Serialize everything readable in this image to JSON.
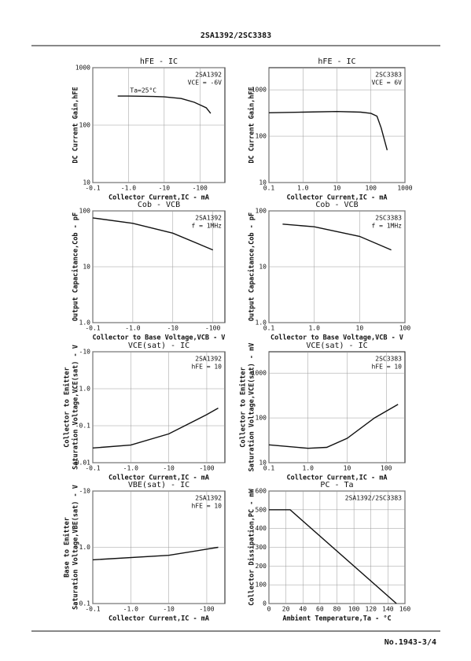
{
  "header": "2SA1392/2SC3383",
  "footer": "No.1943-3/4",
  "chart_data": [
    {
      "type": "line",
      "title": "hFE - IC",
      "annotations": [
        "2SA1392",
        "VCE = -6V"
      ],
      "x_label": "Collector Current,IC - mA",
      "y_label": [
        "DC Current Gain,hFE"
      ],
      "xscale": "log",
      "yscale": "log",
      "xlim": [
        -0.1,
        -500
      ],
      "ylim": [
        10,
        1000
      ],
      "xticks": [
        -0.1,
        {
          "value": -1,
          "label": "-1.0"
        },
        -10,
        -100
      ],
      "yticks": [
        10,
        100,
        1000
      ],
      "x": [
        -0.5,
        -1,
        -5,
        -10,
        -30,
        -70,
        -150,
        -200
      ],
      "series": [
        {
          "name": "Ta=25°C",
          "color": "#111",
          "values": [
            320,
            320,
            315,
            310,
            290,
            250,
            200,
            160
          ]
        }
      ]
    },
    {
      "type": "line",
      "title": "hFE - IC",
      "annotations": [
        "2SC3383",
        "VCE = 6V"
      ],
      "x_label": "Collector Current,IC - mA",
      "y_label": [
        "DC Current Gain,hFE"
      ],
      "xscale": "log",
      "yscale": "log",
      "xlim": [
        0.1,
        1000
      ],
      "ylim": [
        10,
        3000
      ],
      "xticks": [
        0.1,
        {
          "value": 1,
          "label": "1.0"
        },
        10,
        100,
        1000
      ],
      "yticks": [
        10,
        100,
        1000
      ],
      "x": [
        0.1,
        1,
        10,
        50,
        100,
        150,
        200,
        300
      ],
      "series": [
        {
          "color": "#111",
          "values": [
            320,
            330,
            340,
            330,
            310,
            270,
            150,
            50
          ]
        }
      ]
    },
    {
      "type": "line",
      "title": "Cob - VCB",
      "annotations": [
        "2SA1392",
        "f = 1MHz"
      ],
      "x_label": "Collector to Base Voltage,VCB - V",
      "y_label": [
        "Output Capacitance,Cob - pF"
      ],
      "xscale": "log",
      "yscale": "log",
      "xlim": [
        -0.1,
        -200
      ],
      "ylim": [
        1,
        100
      ],
      "xticks": [
        -0.1,
        {
          "value": -1,
          "label": "-1.0"
        },
        -10,
        -100
      ],
      "yticks": [
        {
          "value": 1,
          "label": "1.0"
        },
        10,
        100
      ],
      "x": [
        -0.1,
        -1,
        -10,
        -100
      ],
      "series": [
        {
          "color": "#111",
          "values": [
            75,
            60,
            40,
            20
          ]
        }
      ]
    },
    {
      "type": "line",
      "title": "Cob - VCB",
      "annotations": [
        "2SC3383",
        "f = 1MHz"
      ],
      "x_label": "Collector to Base Voltage,VCB - V",
      "y_label": [
        "Output Capacitance,Cob - pF"
      ],
      "xscale": "log",
      "yscale": "log",
      "xlim": [
        0.1,
        100
      ],
      "ylim": [
        1,
        100
      ],
      "xticks": [
        0.1,
        {
          "value": 1,
          "label": "1.0"
        },
        10,
        100
      ],
      "yticks": [
        {
          "value": 1,
          "label": "1.0"
        },
        10,
        100
      ],
      "x": [
        0.2,
        1,
        10,
        50
      ],
      "series": [
        {
          "color": "#111",
          "values": [
            58,
            52,
            35,
            20
          ]
        }
      ]
    },
    {
      "type": "line",
      "title": "VCE(sat) - IC",
      "annotations": [
        "2SA1392",
        "hFE = 10"
      ],
      "x_label": "Collector Current,IC - mA",
      "y_label": [
        "Collector to Emitter",
        "Saturation Voltage,VCE(sat) - V"
      ],
      "xscale": "log",
      "yscale": "log",
      "xlim": [
        -0.1,
        -300
      ],
      "ylim": [
        -0.01,
        -10
      ],
      "xticks": [
        -0.1,
        {
          "value": -1,
          "label": "-1.0"
        },
        -10,
        -100
      ],
      "yticks": [
        -0.01,
        -0.1,
        {
          "value": -1,
          "label": "-1.0"
        },
        -10
      ],
      "x": [
        -0.1,
        -1,
        -10,
        -100,
        -200
      ],
      "series": [
        {
          "color": "#111",
          "values": [
            -0.025,
            -0.03,
            -0.06,
            -0.2,
            -0.3
          ]
        }
      ]
    },
    {
      "type": "line",
      "title": "VCE(sat) - IC",
      "annotations": [
        "2SC3383",
        "hFE = 10"
      ],
      "x_label": "Collector Current,IC - mA",
      "y_label": [
        "Collector to Emitter",
        "Saturation Voltage,VCE(sat) - mV"
      ],
      "xscale": "log",
      "yscale": "log",
      "xlim": [
        0.1,
        300
      ],
      "ylim": [
        10,
        3000
      ],
      "xticks": [
        0.1,
        {
          "value": 1,
          "label": "1.0"
        },
        10,
        100
      ],
      "yticks": [
        10,
        100,
        1000
      ],
      "x": [
        0.1,
        1,
        3,
        10,
        50,
        200
      ],
      "series": [
        {
          "color": "#111",
          "values": [
            25,
            21,
            22,
            35,
            100,
            200
          ]
        }
      ]
    },
    {
      "type": "line",
      "title": "VBE(sat) - IC",
      "annotations": [
        "2SA1392",
        "hFE = 10"
      ],
      "x_label": "Collector Current,IC - mA",
      "y_label": [
        "Base to Emitter",
        "Saturation Voltage,VBE(sat) - V"
      ],
      "xscale": "log",
      "yscale": "log",
      "xlim": [
        -0.1,
        -300
      ],
      "ylim": [
        -0.1,
        -10
      ],
      "xticks": [
        -0.1,
        {
          "value": -1,
          "label": "-1.0"
        },
        -10,
        -100
      ],
      "yticks": [
        -0.1,
        {
          "value": -1,
          "label": "-1.0"
        },
        -10
      ],
      "x": [
        -0.1,
        -10,
        -200
      ],
      "series": [
        {
          "color": "#111",
          "values": [
            -0.6,
            -0.72,
            -1.0
          ]
        }
      ]
    },
    {
      "type": "line",
      "title": "PC - Ta",
      "annotations": [
        "2SA1392/2SC3383"
      ],
      "x_label": "Ambient Temperature,Ta - °C",
      "y_label": [
        "Collector Dissipation,PC - mW"
      ],
      "xscale": "linear",
      "yscale": "linear",
      "xlim": [
        0,
        160
      ],
      "ylim": [
        0,
        600
      ],
      "xticks": [
        0,
        20,
        40,
        60,
        80,
        100,
        120,
        140,
        160
      ],
      "yticks": [
        0,
        100,
        200,
        300,
        400,
        500,
        600
      ],
      "x": [
        0,
        25,
        150
      ],
      "series": [
        {
          "color": "#111",
          "values": [
            500,
            500,
            0
          ]
        }
      ]
    }
  ]
}
